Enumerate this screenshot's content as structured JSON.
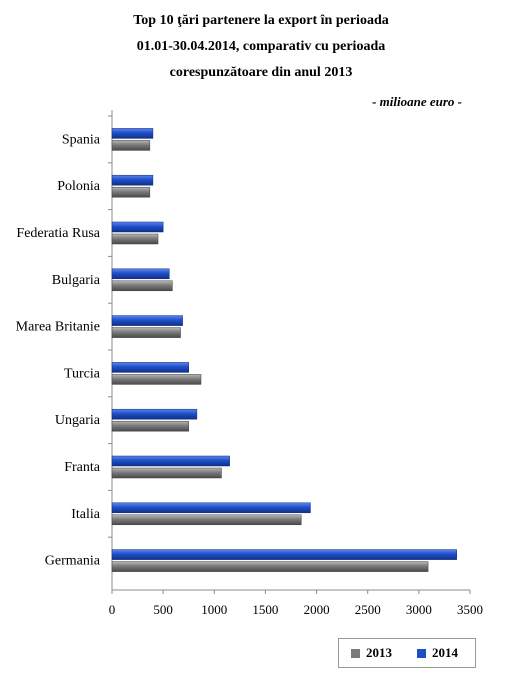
{
  "title_lines": [
    "Top 10 ţări  partenere la export în perioada",
    "01.01-30.04.2014, comparativ cu perioada",
    "corespunzătoare din anul 2013"
  ],
  "unit_label": "- milioane euro -",
  "colors": {
    "y2013": "#7a7a7a",
    "y2014": "#1f4fc8",
    "axis": "#8c8c8c"
  },
  "legend": [
    {
      "name": "2013",
      "color": "#7a7a7a"
    },
    {
      "name": "2014",
      "color": "#1f4fc8"
    }
  ],
  "chart_data": {
    "type": "bar",
    "orientation": "horizontal",
    "categories": [
      "Spania",
      "Polonia",
      "Federatia Rusa",
      "Bulgaria",
      "Marea Britanie",
      "Turcia",
      "Ungaria",
      "Franta",
      "Italia",
      "Germania"
    ],
    "series": [
      {
        "name": "2013",
        "values": [
          370,
          370,
          450,
          590,
          670,
          870,
          750,
          1070,
          1850,
          3090
        ]
      },
      {
        "name": "2014",
        "values": [
          400,
          400,
          500,
          560,
          690,
          750,
          830,
          1150,
          1940,
          3370
        ]
      }
    ],
    "xlim": [
      0,
      3500
    ],
    "x_ticks": [
      "0",
      "500",
      "1000",
      "1500",
      "2000",
      "2500",
      "3000",
      "3500"
    ],
    "x_tick_values": [
      0,
      500,
      1000,
      1500,
      2000,
      2500,
      3000,
      3500
    ],
    "grid": false,
    "legend_position": "bottom-right"
  }
}
